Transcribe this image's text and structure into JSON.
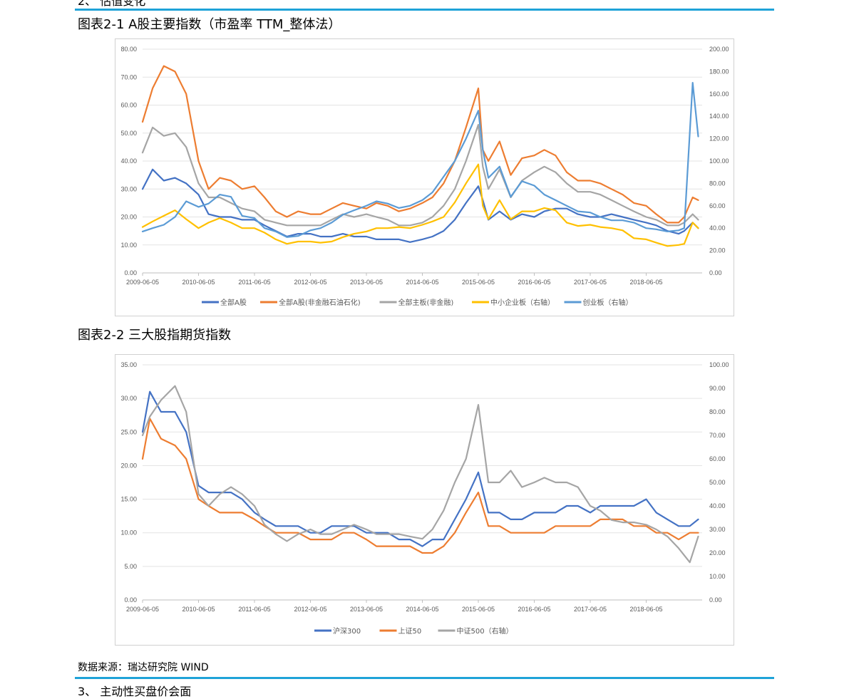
{
  "page": {
    "top_clipped_text": "2、 估值变化",
    "fig1_title": "图表2-1 A股主要指数（市盈率 TTM_整体法）",
    "fig2_title": "图表2-2 三大股指期货指数",
    "source": "数据来源：瑞达研究院 WIND",
    "bottom_clipped_text": "3、 主动性买盘价会面"
  },
  "colors": {
    "rule": "#1fa3d8",
    "blue": "#4472c4",
    "orange": "#ed7d31",
    "gray": "#a5a5a5",
    "yellow": "#ffc000",
    "lightblue": "#5b9bd5"
  },
  "chart_data": [
    {
      "type": "line",
      "title": "图表2-1 A股主要指数（市盈率 TTM_整体法）",
      "x_ticks": [
        "2009-06-05",
        "2010-06-05",
        "2011-06-05",
        "2012-06-05",
        "2013-06-05",
        "2014-06-05",
        "2015-06-05",
        "2016-06-05",
        "2017-06-05",
        "2018-06-05"
      ],
      "y_left": {
        "range": [
          0,
          80
        ],
        "ticks": [
          "0.00",
          "10.00",
          "20.00",
          "30.00",
          "40.00",
          "50.00",
          "60.00",
          "70.00",
          "80.00"
        ]
      },
      "y_right": {
        "range": [
          0,
          200
        ],
        "ticks": [
          "0.00",
          "20.00",
          "40.00",
          "60.00",
          "80.00",
          "100.00",
          "120.00",
          "140.00",
          "160.00",
          "180.00",
          "200.00"
        ]
      },
      "legend_position": "bottom",
      "x": [
        2009.42,
        2009.6,
        2009.8,
        2010.0,
        2010.2,
        2010.42,
        2010.6,
        2010.8,
        2011.0,
        2011.2,
        2011.42,
        2011.6,
        2011.8,
        2012.0,
        2012.2,
        2012.42,
        2012.6,
        2012.8,
        2013.0,
        2013.2,
        2013.42,
        2013.6,
        2013.8,
        2014.0,
        2014.2,
        2014.42,
        2014.6,
        2014.8,
        2015.0,
        2015.2,
        2015.42,
        2015.5,
        2015.6,
        2015.8,
        2016.0,
        2016.2,
        2016.42,
        2016.6,
        2016.8,
        2017.0,
        2017.2,
        2017.42,
        2017.6,
        2017.8,
        2018.0,
        2018.2,
        2018.42,
        2018.6,
        2018.8,
        2019.0,
        2019.1,
        2019.25,
        2019.35
      ],
      "series": [
        {
          "name": "全部A股",
          "axis": "left",
          "color": "#4472c4",
          "values": [
            30,
            37,
            33,
            34,
            32,
            28,
            21,
            20,
            20,
            19,
            19,
            17,
            15,
            13,
            14,
            14,
            13,
            13,
            14,
            13,
            13,
            12,
            12,
            12,
            11,
            12,
            13,
            15,
            19,
            25,
            31,
            26,
            19,
            22,
            19,
            21,
            20,
            22,
            23,
            23,
            21,
            20,
            20,
            21,
            20,
            19,
            18,
            17,
            15,
            14,
            15,
            18,
            16
          ]
        },
        {
          "name": "全部A股(非金融石油石化)",
          "axis": "left",
          "color": "#ed7d31",
          "values": [
            54,
            66,
            74,
            72,
            64,
            40,
            30,
            34,
            33,
            30,
            31,
            27,
            22,
            20,
            22,
            21,
            21,
            23,
            25,
            24,
            23,
            25,
            24,
            22,
            23,
            25,
            27,
            32,
            40,
            52,
            66,
            44,
            40,
            47,
            35,
            41,
            42,
            44,
            42,
            36,
            33,
            33,
            32,
            30,
            28,
            25,
            24,
            21,
            18,
            18,
            20,
            27,
            26
          ]
        },
        {
          "name": "全部主板(非金融)",
          "axis": "left",
          "color": "#a5a5a5",
          "values": [
            43,
            52,
            49,
            50,
            45,
            32,
            27,
            27,
            25,
            23,
            22,
            19,
            18,
            17,
            17,
            17,
            17,
            19,
            21,
            20,
            21,
            20,
            19,
            17,
            17,
            18,
            20,
            24,
            30,
            40,
            53,
            38,
            30,
            37,
            27,
            33,
            36,
            38,
            36,
            32,
            29,
            29,
            28,
            26,
            24,
            22,
            20,
            19,
            17,
            17,
            18,
            21,
            19
          ]
        },
        {
          "name": "中小企业板（右轴）",
          "axis": "right",
          "color": "#ffc000",
          "values": [
            41,
            46,
            51,
            56,
            48,
            40,
            45,
            49,
            45,
            40,
            40,
            36,
            30,
            26,
            28,
            28,
            27,
            28,
            32,
            35,
            37,
            40,
            40,
            41,
            40,
            43,
            46,
            50,
            63,
            80,
            97,
            60,
            48,
            65,
            48,
            55,
            55,
            58,
            56,
            45,
            42,
            43,
            41,
            40,
            38,
            31,
            30,
            27,
            24,
            25,
            26,
            45,
            40
          ]
        },
        {
          "name": "创业板（右轴）",
          "axis": "right",
          "color": "#5b9bd5",
          "values": [
            37,
            40,
            43,
            50,
            64,
            59,
            62,
            70,
            68,
            51,
            49,
            40,
            37,
            32,
            33,
            38,
            40,
            45,
            52,
            56,
            60,
            64,
            62,
            58,
            60,
            65,
            72,
            86,
            100,
            120,
            145,
            110,
            85,
            95,
            68,
            82,
            78,
            70,
            65,
            60,
            55,
            54,
            50,
            47,
            47,
            45,
            40,
            39,
            37,
            38,
            40,
            170,
            122
          ]
        }
      ]
    },
    {
      "type": "line",
      "title": "图表2-2 三大股指期货指数",
      "x_ticks": [
        "2009-06-05",
        "2010-06-05",
        "2011-06-05",
        "2012-06-05",
        "2013-06-05",
        "2014-06-05",
        "2015-06-05",
        "2016-06-05",
        "2017-06-05",
        "2018-06-05"
      ],
      "y_left": {
        "range": [
          0,
          35
        ],
        "ticks": [
          "0.00",
          "5.00",
          "10.00",
          "15.00",
          "20.00",
          "25.00",
          "30.00",
          "35.00"
        ]
      },
      "y_right": {
        "range": [
          0,
          100
        ],
        "ticks": [
          "0.00",
          "10.00",
          "20.00",
          "30.00",
          "40.00",
          "50.00",
          "60.00",
          "70.00",
          "80.00",
          "90.00",
          "100.00"
        ]
      },
      "legend_position": "bottom",
      "x": [
        2009.42,
        2009.55,
        2009.75,
        2010.0,
        2010.2,
        2010.42,
        2010.6,
        2010.8,
        2011.0,
        2011.2,
        2011.42,
        2011.6,
        2011.8,
        2012.0,
        2012.2,
        2012.42,
        2012.6,
        2012.8,
        2013.0,
        2013.2,
        2013.42,
        2013.6,
        2013.8,
        2014.0,
        2014.2,
        2014.42,
        2014.6,
        2014.8,
        2015.0,
        2015.2,
        2015.42,
        2015.6,
        2015.8,
        2016.0,
        2016.2,
        2016.42,
        2016.6,
        2016.8,
        2017.0,
        2017.2,
        2017.42,
        2017.6,
        2017.8,
        2018.0,
        2018.2,
        2018.42,
        2018.6,
        2018.8,
        2019.0,
        2019.2,
        2019.35
      ],
      "series": [
        {
          "name": "沪深300",
          "axis": "left",
          "color": "#4472c4",
          "values": [
            25,
            31,
            28,
            28,
            25,
            17,
            16,
            16,
            16,
            15,
            13,
            12,
            11,
            11,
            11,
            10,
            10,
            11,
            11,
            11,
            10,
            10,
            10,
            9,
            9,
            8,
            9,
            9,
            12,
            15,
            19,
            13,
            13,
            12,
            12,
            13,
            13,
            13,
            14,
            14,
            13,
            14,
            14,
            14,
            14,
            15,
            13,
            12,
            11,
            11,
            12
          ]
        },
        {
          "name": "上证50",
          "axis": "left",
          "color": "#ed7d31",
          "values": [
            21,
            27,
            24,
            23,
            21,
            15,
            14,
            13,
            13,
            13,
            12,
            11,
            10,
            10,
            10,
            9,
            9,
            9,
            10,
            10,
            9,
            8,
            8,
            8,
            8,
            7,
            7,
            8,
            10,
            13,
            16,
            11,
            11,
            10,
            10,
            10,
            10,
            11,
            11,
            11,
            11,
            12,
            12,
            12,
            11,
            11,
            10,
            10,
            9,
            10,
            10
          ]
        },
        {
          "name": "中证500（右轴）",
          "axis": "right",
          "color": "#a5a5a5",
          "values": [
            70,
            78,
            85,
            91,
            80,
            45,
            40,
            45,
            48,
            45,
            40,
            32,
            28,
            25,
            28,
            30,
            28,
            28,
            30,
            32,
            30,
            28,
            28,
            28,
            27,
            26,
            30,
            38,
            50,
            60,
            83,
            50,
            50,
            55,
            48,
            50,
            52,
            50,
            50,
            48,
            40,
            38,
            34,
            33,
            33,
            32,
            30,
            27,
            22,
            16,
            27
          ]
        }
      ]
    }
  ]
}
